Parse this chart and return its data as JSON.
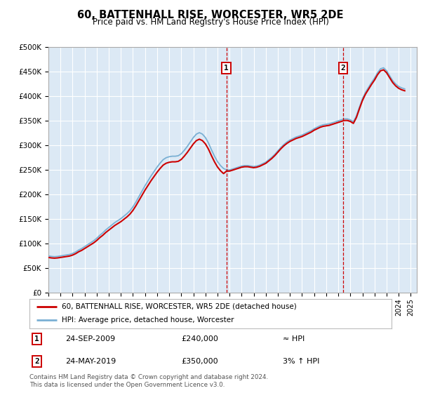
{
  "title": "60, BATTENHALL RISE, WORCESTER, WR5 2DE",
  "subtitle": "Price paid vs. HM Land Registry's House Price Index (HPI)",
  "background_color": "#ffffff",
  "plot_bg_color": "#dce9f5",
  "grid_color": "#ffffff",
  "ylim": [
    0,
    500000
  ],
  "yticks": [
    0,
    50000,
    100000,
    150000,
    200000,
    250000,
    300000,
    350000,
    400000,
    450000,
    500000
  ],
  "ytick_labels": [
    "£0",
    "£50K",
    "£100K",
    "£150K",
    "£200K",
    "£250K",
    "£300K",
    "£350K",
    "£400K",
    "£450K",
    "£500K"
  ],
  "xlim_start": 1995.0,
  "xlim_end": 2025.5,
  "xtick_years": [
    1995,
    1996,
    1997,
    1998,
    1999,
    2000,
    2001,
    2002,
    2003,
    2004,
    2005,
    2006,
    2007,
    2008,
    2009,
    2010,
    2011,
    2012,
    2013,
    2014,
    2015,
    2016,
    2017,
    2018,
    2019,
    2020,
    2021,
    2022,
    2023,
    2024,
    2025
  ],
  "transaction1_x": 2009.73,
  "transaction1_y": 240000,
  "transaction2_x": 2019.4,
  "transaction2_y": 350000,
  "property_line_color": "#cc0000",
  "hpi_line_color": "#7ab0d4",
  "legend_property": "60, BATTENHALL RISE, WORCESTER, WR5 2DE (detached house)",
  "legend_hpi": "HPI: Average price, detached house, Worcester",
  "annotation1_date": "24-SEP-2009",
  "annotation1_price": "£240,000",
  "annotation1_hpi": "≈ HPI",
  "annotation2_date": "24-MAY-2019",
  "annotation2_price": "£350,000",
  "annotation2_hpi": "3% ↑ HPI",
  "footer": "Contains HM Land Registry data © Crown copyright and database right 2024.\nThis data is licensed under the Open Government Licence v3.0.",
  "hpi_data_x": [
    1995.0,
    1995.25,
    1995.5,
    1995.75,
    1996.0,
    1996.25,
    1996.5,
    1996.75,
    1997.0,
    1997.25,
    1997.5,
    1997.75,
    1998.0,
    1998.25,
    1998.5,
    1998.75,
    1999.0,
    1999.25,
    1999.5,
    1999.75,
    2000.0,
    2000.25,
    2000.5,
    2000.75,
    2001.0,
    2001.25,
    2001.5,
    2001.75,
    2002.0,
    2002.25,
    2002.5,
    2002.75,
    2003.0,
    2003.25,
    2003.5,
    2003.75,
    2004.0,
    2004.25,
    2004.5,
    2004.75,
    2005.0,
    2005.25,
    2005.5,
    2005.75,
    2006.0,
    2006.25,
    2006.5,
    2006.75,
    2007.0,
    2007.25,
    2007.5,
    2007.75,
    2008.0,
    2008.25,
    2008.5,
    2008.75,
    2009.0,
    2009.25,
    2009.5,
    2009.75,
    2010.0,
    2010.25,
    2010.5,
    2010.75,
    2011.0,
    2011.25,
    2011.5,
    2011.75,
    2012.0,
    2012.25,
    2012.5,
    2012.75,
    2013.0,
    2013.25,
    2013.5,
    2013.75,
    2014.0,
    2014.25,
    2014.5,
    2014.75,
    2015.0,
    2015.25,
    2015.5,
    2015.75,
    2016.0,
    2016.25,
    2016.5,
    2016.75,
    2017.0,
    2017.25,
    2017.5,
    2017.75,
    2018.0,
    2018.25,
    2018.5,
    2018.75,
    2019.0,
    2019.25,
    2019.5,
    2019.75,
    2020.0,
    2020.25,
    2020.5,
    2020.75,
    2021.0,
    2021.25,
    2021.5,
    2021.75,
    2022.0,
    2022.25,
    2022.5,
    2022.75,
    2023.0,
    2023.25,
    2023.5,
    2023.75,
    2024.0,
    2024.25,
    2024.5
  ],
  "hpi_data_y": [
    75000,
    74000,
    73500,
    74000,
    75000,
    76000,
    77000,
    78000,
    80000,
    83000,
    87000,
    90000,
    94000,
    98000,
    102000,
    106000,
    111000,
    117000,
    122000,
    128000,
    133000,
    138000,
    143000,
    147000,
    151000,
    156000,
    161000,
    167000,
    175000,
    185000,
    196000,
    207000,
    218000,
    228000,
    238000,
    247000,
    256000,
    264000,
    271000,
    275000,
    277000,
    278000,
    278000,
    279000,
    283000,
    290000,
    298000,
    307000,
    316000,
    323000,
    326000,
    323000,
    316000,
    305000,
    291000,
    278000,
    267000,
    259000,
    253000,
    250000,
    250000,
    252000,
    254000,
    256000,
    258000,
    259000,
    259000,
    258000,
    257000,
    258000,
    260000,
    263000,
    266000,
    271000,
    276000,
    282000,
    289000,
    296000,
    302000,
    307000,
    311000,
    314000,
    317000,
    319000,
    321000,
    324000,
    327000,
    330000,
    334000,
    337000,
    340000,
    342000,
    343000,
    344000,
    346000,
    348000,
    350000,
    352000,
    354000,
    354000,
    352000,
    348000,
    360000,
    378000,
    395000,
    408000,
    418000,
    428000,
    437000,
    448000,
    456000,
    458000,
    452000,
    442000,
    432000,
    425000,
    420000,
    417000,
    415000
  ]
}
